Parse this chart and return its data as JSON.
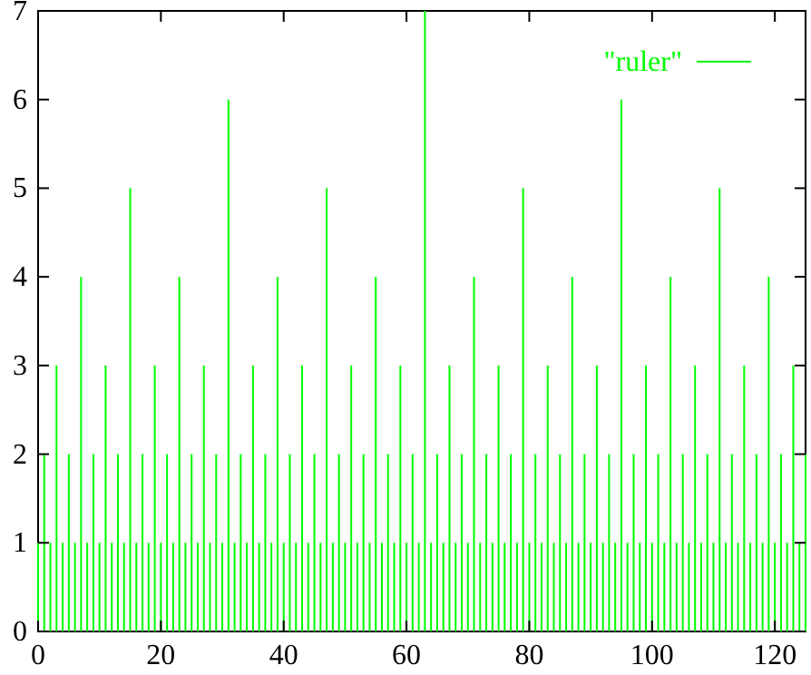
{
  "chart_data": {
    "type": "bar",
    "x": [
      0,
      1,
      2,
      3,
      4,
      5,
      6,
      7,
      8,
      9,
      10,
      11,
      12,
      13,
      14,
      15,
      16,
      17,
      18,
      19,
      20,
      21,
      22,
      23,
      24,
      25,
      26,
      27,
      28,
      29,
      30,
      31,
      32,
      33,
      34,
      35,
      36,
      37,
      38,
      39,
      40,
      41,
      42,
      43,
      44,
      45,
      46,
      47,
      48,
      49,
      50,
      51,
      52,
      53,
      54,
      55,
      56,
      57,
      58,
      59,
      60,
      61,
      62,
      63,
      64,
      65,
      66,
      67,
      68,
      69,
      70,
      71,
      72,
      73,
      74,
      75,
      76,
      77,
      78,
      79,
      80,
      81,
      82,
      83,
      84,
      85,
      86,
      87,
      88,
      89,
      90,
      91,
      92,
      93,
      94,
      95,
      96,
      97,
      98,
      99,
      100,
      101,
      102,
      103,
      104,
      105,
      106,
      107,
      108,
      109,
      110,
      111,
      112,
      113,
      114,
      115,
      116,
      117,
      118,
      119,
      120,
      121,
      122,
      123,
      124,
      125
    ],
    "series": [
      {
        "name": "\"ruler\"",
        "color": "#00ff00",
        "values": [
          1,
          2,
          1,
          3,
          1,
          2,
          1,
          4,
          1,
          2,
          1,
          3,
          1,
          2,
          1,
          5,
          1,
          2,
          1,
          3,
          1,
          2,
          1,
          4,
          1,
          2,
          1,
          3,
          1,
          2,
          1,
          6,
          1,
          2,
          1,
          3,
          1,
          2,
          1,
          4,
          1,
          2,
          1,
          3,
          1,
          2,
          1,
          5,
          1,
          2,
          1,
          3,
          1,
          2,
          1,
          4,
          1,
          2,
          1,
          3,
          1,
          2,
          1,
          7,
          1,
          2,
          1,
          3,
          1,
          2,
          1,
          4,
          1,
          2,
          1,
          3,
          1,
          2,
          1,
          5,
          1,
          2,
          1,
          3,
          1,
          2,
          1,
          4,
          1,
          2,
          1,
          3,
          1,
          2,
          1,
          6,
          1,
          2,
          1,
          3,
          1,
          2,
          1,
          4,
          1,
          2,
          1,
          3,
          1,
          2,
          1,
          5,
          1,
          2,
          1,
          3,
          1,
          2,
          1,
          4,
          1,
          2,
          1,
          3,
          1,
          2
        ]
      }
    ],
    "xlim": [
      0,
      125
    ],
    "xticks": [
      0,
      20,
      40,
      60,
      80,
      100,
      120
    ],
    "ylim": [
      0,
      7
    ],
    "yticks": [
      0,
      1,
      2,
      3,
      4,
      5,
      6,
      7
    ],
    "legend": "top right"
  }
}
